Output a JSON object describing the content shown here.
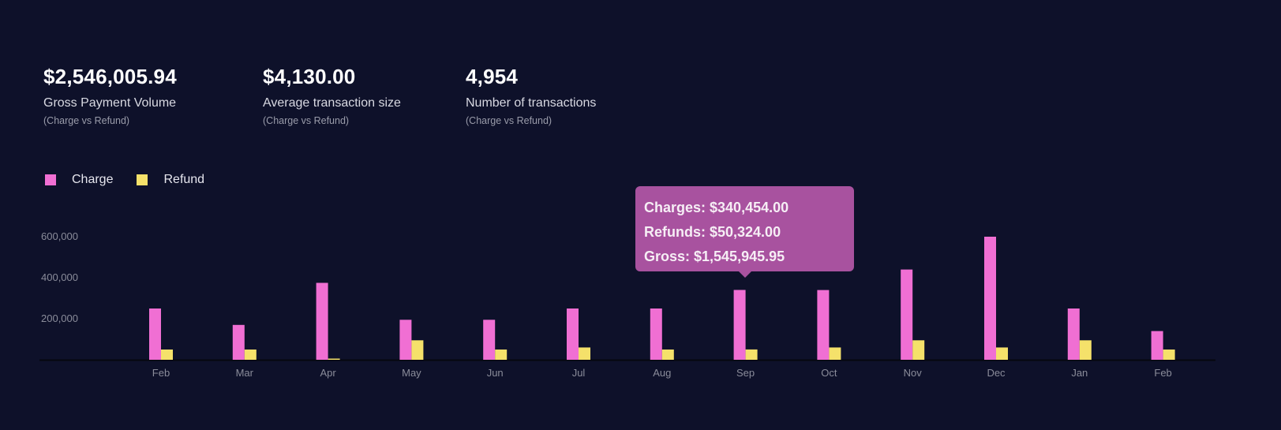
{
  "stats": [
    {
      "value": "$2,546,005.94",
      "label": "Gross Payment Volume",
      "sub": "(Charge vs Refund)"
    },
    {
      "value": "$4,130.00",
      "label": "Average transaction size",
      "sub": "(Charge vs Refund)"
    },
    {
      "value": "4,954",
      "label": "Number of transactions",
      "sub": "(Charge vs Refund)"
    }
  ],
  "tooltip": {
    "charges": "Charges: $340,454.00",
    "refunds": "Refunds: $50,324.00",
    "gross": "Gross: $1,545,945.95"
  },
  "colors": {
    "background": "#0e112a",
    "charge": "#f06fd3",
    "refund": "#f5e16a",
    "tooltip": "#a8529f"
  },
  "chart_data": {
    "type": "bar",
    "categories": [
      "Feb",
      "Mar",
      "Apr",
      "May",
      "Jun",
      "Jul",
      "Aug",
      "Sep",
      "Oct",
      "Nov",
      "Dec",
      "Jan",
      "Feb"
    ],
    "series": [
      {
        "name": "Charge",
        "values": [
          250000,
          170000,
          375000,
          195000,
          195000,
          250000,
          250000,
          340454,
          340000,
          440000,
          600000,
          250000,
          140000
        ]
      },
      {
        "name": "Refund",
        "values": [
          50000,
          50000,
          3000,
          95000,
          50000,
          60000,
          50000,
          50324,
          60000,
          95000,
          60000,
          95000,
          50000
        ]
      }
    ],
    "yticks": [
      200000,
      400000,
      600000
    ],
    "ytick_labels": [
      "200,000",
      "400,000",
      "600,000"
    ],
    "ylim": [
      0,
      650000
    ],
    "legend": "top-left",
    "grid": false
  }
}
